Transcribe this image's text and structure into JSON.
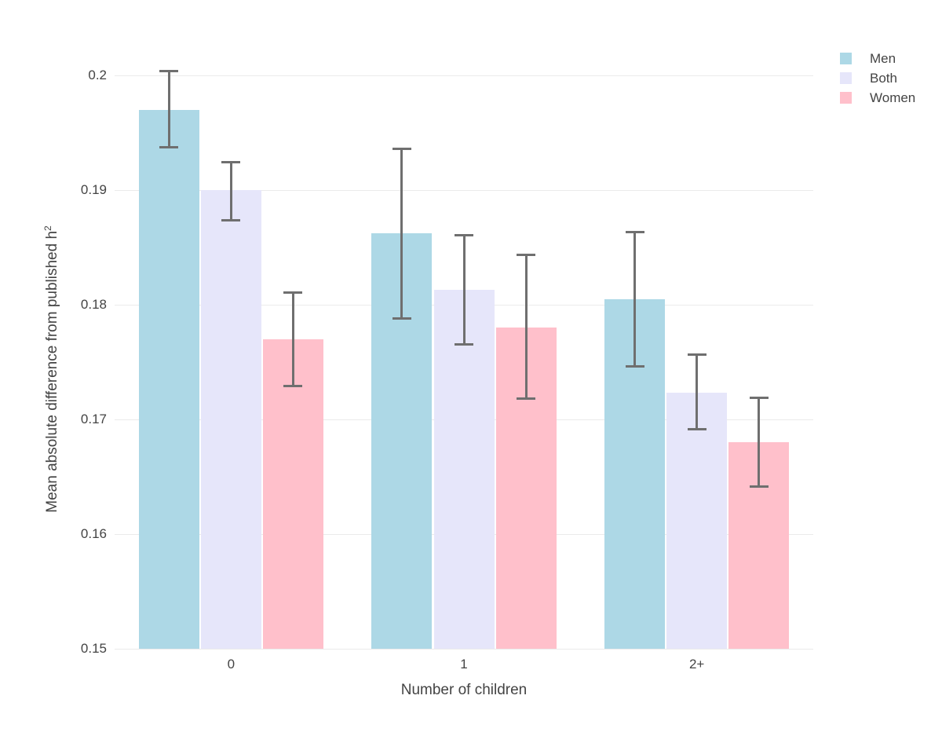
{
  "chart_data": {
    "type": "bar",
    "title": "",
    "categories": [
      "0",
      "1",
      "2+"
    ],
    "series": [
      {
        "name": "Men",
        "color": "#ADD8E6",
        "values": [
          0.197,
          0.1862,
          0.1805
        ],
        "error_low": [
          0.1937,
          0.1788,
          0.1746
        ],
        "error_high": [
          0.2004,
          0.1936,
          0.1864
        ]
      },
      {
        "name": "Both",
        "color": "#E6E6FA",
        "values": [
          0.19,
          0.1813,
          0.1723
        ],
        "error_low": [
          0.1873,
          0.1765,
          0.1691
        ],
        "error_high": [
          0.1925,
          0.1861,
          0.1757
        ]
      },
      {
        "name": "Women",
        "color": "#FFC0CB",
        "values": [
          0.177,
          0.178,
          0.168
        ],
        "error_low": [
          0.1729,
          0.1718,
          0.1641
        ],
        "error_high": [
          0.1811,
          0.1844,
          0.1719
        ]
      }
    ],
    "xlabel": "Number of children",
    "ylabel": {
      "text": "Mean absolute difference from published h",
      "sup": "2"
    },
    "ylim": [
      0.15,
      0.2045
    ],
    "yticks": [
      {
        "value": 0.15,
        "label": "0.15"
      },
      {
        "value": 0.16,
        "label": "0.16"
      },
      {
        "value": 0.17,
        "label": "0.17"
      },
      {
        "value": 0.18,
        "label": "0.18"
      },
      {
        "value": 0.19,
        "label": "0.19"
      },
      {
        "value": 0.2,
        "label": "0.2"
      }
    ],
    "grid": true,
    "legend_position": "top-right",
    "colors": {
      "grid": "#ebebeb",
      "error_bar": "#6f6f6f",
      "text": "#444444",
      "background": "#ffffff"
    }
  }
}
